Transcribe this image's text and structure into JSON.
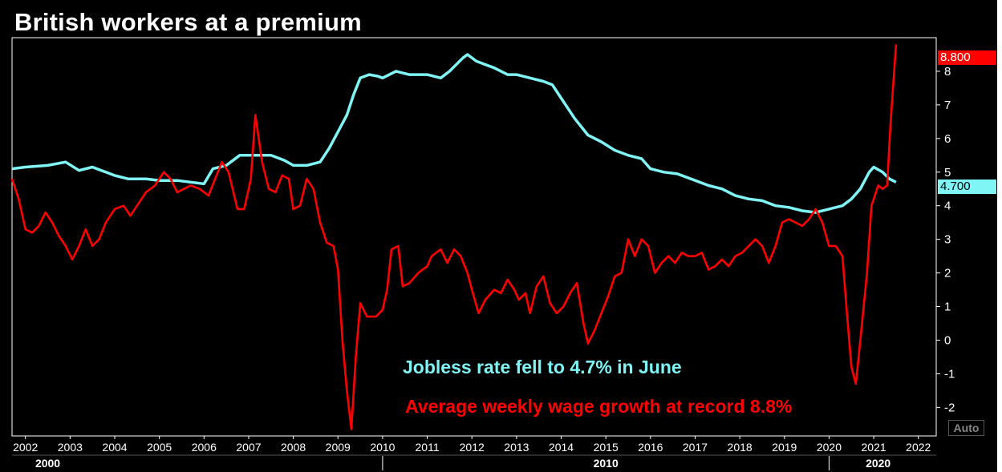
{
  "title": "British workers at a premium",
  "auto_label": "Auto",
  "annotations": {
    "jobless": "Jobless rate fell to 4.7% in June",
    "wage": "Average weekly wage growth at record 8.8%"
  },
  "last_values": {
    "wage": "8.800",
    "jobless": "4.700"
  },
  "colors": {
    "background": "#000000",
    "wage": "#ff0000",
    "jobless": "#7ff5f5",
    "axis": "#ffffff"
  },
  "chart_data": {
    "type": "line",
    "title": "British workers at a premium",
    "xlabel": "",
    "ylabel": "",
    "xlim": [
      2001.7,
      2022.4
    ],
    "ylim": [
      -2.85,
      9.0
    ],
    "y_ticks": [
      "-2",
      "-1",
      "0",
      "1",
      "2",
      "3",
      "4",
      "5",
      "6",
      "7",
      "8"
    ],
    "x_ticks": [
      "2002",
      "2003",
      "2004",
      "2005",
      "2006",
      "2007",
      "2008",
      "2009",
      "2010",
      "2011",
      "2012",
      "2013",
      "2014",
      "2015",
      "2016",
      "2017",
      "2018",
      "2019",
      "2020",
      "2021",
      "2022"
    ],
    "decades": [
      "2000",
      "2010",
      "2020"
    ],
    "grid": false,
    "series": [
      {
        "id": "jobless",
        "color": "#7ff5f5",
        "points": [
          [
            2001.7,
            5.1
          ],
          [
            2002.0,
            5.15
          ],
          [
            2002.5,
            5.2
          ],
          [
            2002.9,
            5.3
          ],
          [
            2003.2,
            5.05
          ],
          [
            2003.5,
            5.15
          ],
          [
            2003.8,
            5.0
          ],
          [
            2004.0,
            4.9
          ],
          [
            2004.3,
            4.8
          ],
          [
            2004.7,
            4.8
          ],
          [
            2005.0,
            4.75
          ],
          [
            2005.4,
            4.75
          ],
          [
            2005.7,
            4.7
          ],
          [
            2006.0,
            4.65
          ],
          [
            2006.2,
            5.1
          ],
          [
            2006.5,
            5.2
          ],
          [
            2006.8,
            5.5
          ],
          [
            2007.2,
            5.5
          ],
          [
            2007.5,
            5.5
          ],
          [
            2007.8,
            5.35
          ],
          [
            2008.0,
            5.2
          ],
          [
            2008.3,
            5.2
          ],
          [
            2008.6,
            5.3
          ],
          [
            2008.8,
            5.7
          ],
          [
            2009.0,
            6.2
          ],
          [
            2009.2,
            6.7
          ],
          [
            2009.35,
            7.3
          ],
          [
            2009.5,
            7.8
          ],
          [
            2009.7,
            7.9
          ],
          [
            2009.9,
            7.85
          ],
          [
            2010.0,
            7.8
          ],
          [
            2010.3,
            8.0
          ],
          [
            2010.6,
            7.9
          ],
          [
            2011.0,
            7.9
          ],
          [
            2011.3,
            7.8
          ],
          [
            2011.5,
            8.0
          ],
          [
            2011.8,
            8.4
          ],
          [
            2011.9,
            8.5
          ],
          [
            2012.1,
            8.3
          ],
          [
            2012.5,
            8.1
          ],
          [
            2012.8,
            7.9
          ],
          [
            2013.0,
            7.9
          ],
          [
            2013.3,
            7.8
          ],
          [
            2013.6,
            7.7
          ],
          [
            2013.8,
            7.6
          ],
          [
            2014.0,
            7.2
          ],
          [
            2014.3,
            6.6
          ],
          [
            2014.6,
            6.1
          ],
          [
            2014.9,
            5.9
          ],
          [
            2015.2,
            5.65
          ],
          [
            2015.5,
            5.5
          ],
          [
            2015.8,
            5.4
          ],
          [
            2016.0,
            5.1
          ],
          [
            2016.3,
            5.0
          ],
          [
            2016.6,
            4.95
          ],
          [
            2017.0,
            4.75
          ],
          [
            2017.3,
            4.6
          ],
          [
            2017.6,
            4.5
          ],
          [
            2017.9,
            4.3
          ],
          [
            2018.2,
            4.2
          ],
          [
            2018.5,
            4.15
          ],
          [
            2018.8,
            4.0
          ],
          [
            2019.1,
            3.95
          ],
          [
            2019.4,
            3.85
          ],
          [
            2019.7,
            3.8
          ],
          [
            2020.0,
            3.9
          ],
          [
            2020.3,
            4.0
          ],
          [
            2020.5,
            4.2
          ],
          [
            2020.7,
            4.5
          ],
          [
            2020.9,
            5.0
          ],
          [
            2021.0,
            5.15
          ],
          [
            2021.2,
            5.0
          ],
          [
            2021.35,
            4.8
          ],
          [
            2021.5,
            4.7
          ]
        ]
      },
      {
        "id": "wage",
        "color": "#ff0000",
        "points": [
          [
            2001.7,
            4.8
          ],
          [
            2001.85,
            4.2
          ],
          [
            2002.0,
            3.3
          ],
          [
            2002.15,
            3.2
          ],
          [
            2002.3,
            3.4
          ],
          [
            2002.45,
            3.8
          ],
          [
            2002.6,
            3.5
          ],
          [
            2002.75,
            3.1
          ],
          [
            2002.9,
            2.8
          ],
          [
            2003.05,
            2.4
          ],
          [
            2003.2,
            2.8
          ],
          [
            2003.35,
            3.3
          ],
          [
            2003.5,
            2.8
          ],
          [
            2003.65,
            3.0
          ],
          [
            2003.8,
            3.5
          ],
          [
            2004.0,
            3.9
          ],
          [
            2004.2,
            4.0
          ],
          [
            2004.35,
            3.7
          ],
          [
            2004.5,
            4.0
          ],
          [
            2004.7,
            4.4
          ],
          [
            2004.9,
            4.6
          ],
          [
            2005.1,
            5.0
          ],
          [
            2005.25,
            4.8
          ],
          [
            2005.4,
            4.4
          ],
          [
            2005.55,
            4.5
          ],
          [
            2005.7,
            4.6
          ],
          [
            2005.9,
            4.5
          ],
          [
            2006.1,
            4.3
          ],
          [
            2006.25,
            4.8
          ],
          [
            2006.4,
            5.3
          ],
          [
            2006.55,
            5.0
          ],
          [
            2006.75,
            3.9
          ],
          [
            2006.9,
            3.9
          ],
          [
            2007.05,
            4.8
          ],
          [
            2007.15,
            6.7
          ],
          [
            2007.3,
            5.3
          ],
          [
            2007.45,
            4.5
          ],
          [
            2007.6,
            4.4
          ],
          [
            2007.75,
            4.9
          ],
          [
            2007.9,
            4.8
          ],
          [
            2008.0,
            3.9
          ],
          [
            2008.15,
            4.0
          ],
          [
            2008.3,
            4.8
          ],
          [
            2008.45,
            4.5
          ],
          [
            2008.6,
            3.5
          ],
          [
            2008.75,
            2.9
          ],
          [
            2008.9,
            2.8
          ],
          [
            2009.0,
            2.1
          ],
          [
            2009.1,
            0.0
          ],
          [
            2009.2,
            -1.5
          ],
          [
            2009.3,
            -2.65
          ],
          [
            2009.4,
            -0.5
          ],
          [
            2009.5,
            1.1
          ],
          [
            2009.65,
            0.7
          ],
          [
            2009.85,
            0.7
          ],
          [
            2010.0,
            0.9
          ],
          [
            2010.1,
            1.5
          ],
          [
            2010.2,
            2.7
          ],
          [
            2010.35,
            2.8
          ],
          [
            2010.45,
            1.6
          ],
          [
            2010.6,
            1.7
          ],
          [
            2010.8,
            2.0
          ],
          [
            2011.0,
            2.2
          ],
          [
            2011.1,
            2.5
          ],
          [
            2011.3,
            2.7
          ],
          [
            2011.45,
            2.3
          ],
          [
            2011.6,
            2.7
          ],
          [
            2011.75,
            2.5
          ],
          [
            2011.9,
            2.0
          ],
          [
            2012.0,
            1.5
          ],
          [
            2012.15,
            0.8
          ],
          [
            2012.3,
            1.2
          ],
          [
            2012.5,
            1.5
          ],
          [
            2012.65,
            1.4
          ],
          [
            2012.8,
            1.8
          ],
          [
            2012.95,
            1.5
          ],
          [
            2013.05,
            1.2
          ],
          [
            2013.2,
            1.4
          ],
          [
            2013.3,
            0.8
          ],
          [
            2013.45,
            1.6
          ],
          [
            2013.6,
            1.9
          ],
          [
            2013.75,
            1.1
          ],
          [
            2013.9,
            0.8
          ],
          [
            2014.05,
            1.0
          ],
          [
            2014.2,
            1.4
          ],
          [
            2014.35,
            1.7
          ],
          [
            2014.5,
            0.5
          ],
          [
            2014.6,
            -0.1
          ],
          [
            2014.75,
            0.3
          ],
          [
            2014.9,
            0.8
          ],
          [
            2015.05,
            1.3
          ],
          [
            2015.2,
            1.9
          ],
          [
            2015.35,
            2.0
          ],
          [
            2015.5,
            3.0
          ],
          [
            2015.65,
            2.5
          ],
          [
            2015.8,
            3.0
          ],
          [
            2015.95,
            2.8
          ],
          [
            2016.1,
            2.0
          ],
          [
            2016.25,
            2.3
          ],
          [
            2016.4,
            2.5
          ],
          [
            2016.55,
            2.3
          ],
          [
            2016.7,
            2.6
          ],
          [
            2016.85,
            2.5
          ],
          [
            2017.0,
            2.5
          ],
          [
            2017.15,
            2.6
          ],
          [
            2017.3,
            2.1
          ],
          [
            2017.45,
            2.2
          ],
          [
            2017.6,
            2.4
          ],
          [
            2017.75,
            2.2
          ],
          [
            2017.9,
            2.5
          ],
          [
            2018.05,
            2.6
          ],
          [
            2018.2,
            2.8
          ],
          [
            2018.35,
            3.0
          ],
          [
            2018.5,
            2.8
          ],
          [
            2018.65,
            2.3
          ],
          [
            2018.8,
            2.8
          ],
          [
            2018.95,
            3.5
          ],
          [
            2019.1,
            3.6
          ],
          [
            2019.25,
            3.5
          ],
          [
            2019.4,
            3.4
          ],
          [
            2019.55,
            3.6
          ],
          [
            2019.7,
            3.9
          ],
          [
            2019.85,
            3.5
          ],
          [
            2020.0,
            2.8
          ],
          [
            2020.15,
            2.8
          ],
          [
            2020.3,
            2.5
          ],
          [
            2020.4,
            0.8
          ],
          [
            2020.5,
            -0.8
          ],
          [
            2020.6,
            -1.3
          ],
          [
            2020.7,
            0.0
          ],
          [
            2020.85,
            2.0
          ],
          [
            2020.95,
            4.0
          ],
          [
            2021.1,
            4.6
          ],
          [
            2021.2,
            4.5
          ],
          [
            2021.3,
            4.6
          ],
          [
            2021.38,
            6.5
          ],
          [
            2021.5,
            8.8
          ]
        ]
      }
    ]
  }
}
